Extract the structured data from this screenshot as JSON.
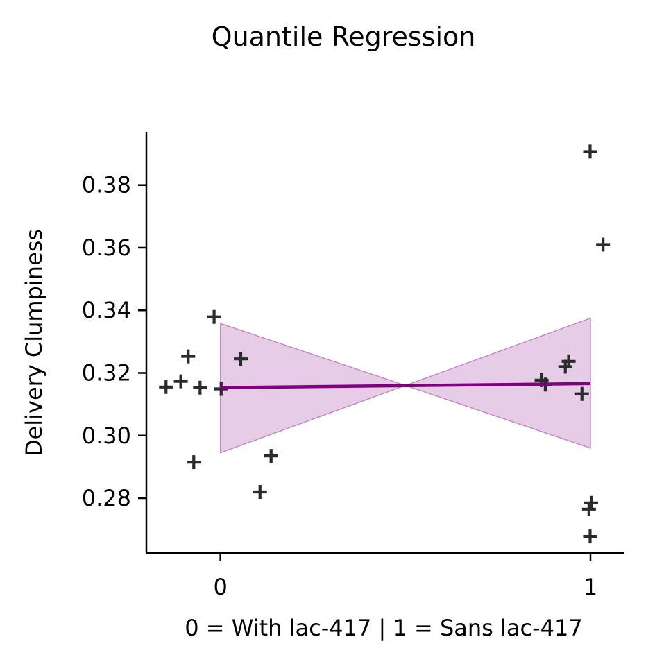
{
  "chart_data": {
    "type": "scatter",
    "title": "Quantile Regression",
    "xlabel": "0 = With lac-417 | 1 = Sans lac-417",
    "ylabel": "Delivery Clumpiness",
    "xlim": [
      -0.2,
      1.09
    ],
    "ylim": [
      0.2625,
      0.397
    ],
    "x_ticks": [
      0,
      1
    ],
    "x_tick_labels": [
      "0",
      "1"
    ],
    "y_ticks": [
      0.28,
      0.3,
      0.32,
      0.34,
      0.36,
      0.38
    ],
    "y_tick_labels": [
      "0.28",
      "0.30",
      "0.32",
      "0.34",
      "0.36",
      "0.38"
    ],
    "grid": false,
    "points": [
      {
        "x": -0.147,
        "y": 0.3155
      },
      {
        "x": -0.107,
        "y": 0.3173
      },
      {
        "x": -0.087,
        "y": 0.3253
      },
      {
        "x": -0.072,
        "y": 0.2915
      },
      {
        "x": -0.055,
        "y": 0.3153
      },
      {
        "x": -0.017,
        "y": 0.3379
      },
      {
        "x": 0.002,
        "y": 0.3149
      },
      {
        "x": 0.055,
        "y": 0.3245
      },
      {
        "x": 0.107,
        "y": 0.282
      },
      {
        "x": 0.137,
        "y": 0.2935
      },
      {
        "x": 0.868,
        "y": 0.3177
      },
      {
        "x": 0.878,
        "y": 0.3163
      },
      {
        "x": 0.932,
        "y": 0.322
      },
      {
        "x": 0.941,
        "y": 0.3237
      },
      {
        "x": 0.977,
        "y": 0.3133
      },
      {
        "x": 0.996,
        "y": 0.2765
      },
      {
        "x": 0.999,
        "y": 0.2678
      },
      {
        "x": 0.999,
        "y": 0.3907
      },
      {
        "x": 1.002,
        "y": 0.2785
      },
      {
        "x": 1.034,
        "y": 0.361
      }
    ],
    "regression_line": {
      "x": [
        0,
        1
      ],
      "y": [
        0.3153,
        0.3166
      ]
    },
    "confidence_band": {
      "x": [
        0,
        0.5,
        1
      ],
      "upper": [
        0.3358,
        0.316,
        0.3375
      ],
      "lower": [
        0.2945,
        0.316,
        0.296
      ]
    },
    "colors": {
      "points": "#2b2b2b",
      "line": "#800080",
      "band_fill": "#d9b0d9",
      "band_edge": "#c58bc5",
      "axis": "#000000"
    }
  }
}
